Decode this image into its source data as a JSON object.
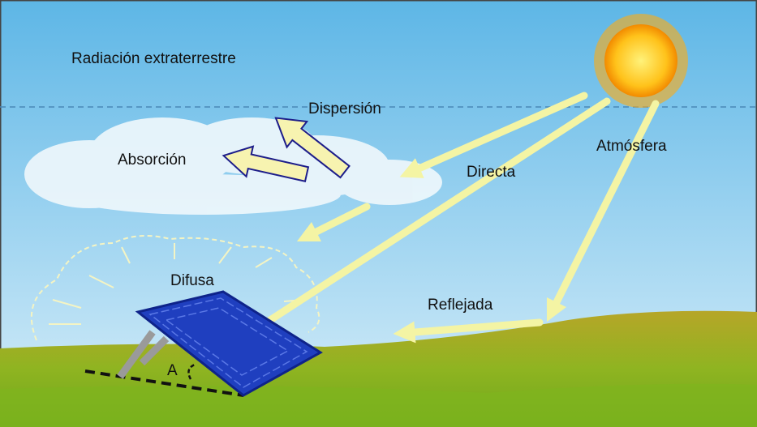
{
  "labels": {
    "extraterrestrial": "Radiación extraterrestre",
    "scattering": "Dispersión",
    "absorption": "Absorción",
    "direct": "Directa",
    "atmosphere": "Atmósfera",
    "diffuse": "Difusa",
    "reflected": "Reflejada",
    "angle": "A"
  }
}
